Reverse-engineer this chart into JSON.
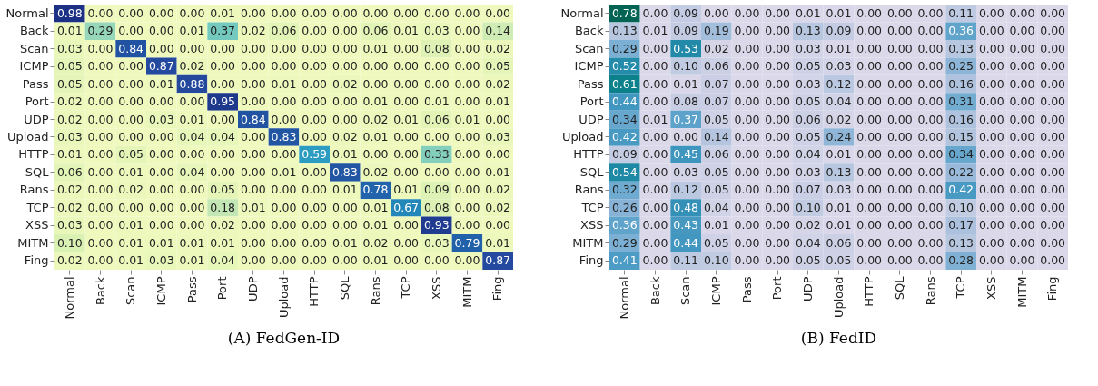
{
  "chart_data": [
    {
      "type": "heatmap",
      "title": "(A) FedGen-ID",
      "data_labels": true,
      "categories": [
        "Normal",
        "Back",
        "Scan",
        "ICMP",
        "Pass",
        "Port",
        "UDP",
        "Upload",
        "HTTP",
        "SQL",
        "Rans",
        "TCP",
        "XSS",
        "MITM",
        "Fing"
      ],
      "y_categories": [
        "Normal",
        "Back",
        "Scan",
        "ICMP",
        "Pass",
        "Port",
        "UDP",
        "Upload",
        "HTTP",
        "SQL",
        "Rans",
        "TCP",
        "XSS",
        "MITM",
        "Fing"
      ],
      "cells": [
        [
          0.98,
          0.0,
          0.0,
          0.0,
          0.0,
          0.01,
          0.0,
          0.0,
          0.0,
          0.0,
          0.0,
          0.0,
          0.0,
          0.0,
          0.0
        ],
        [
          0.01,
          0.29,
          0.0,
          0.0,
          0.01,
          0.37,
          0.02,
          0.06,
          0.0,
          0.0,
          0.06,
          0.01,
          0.03,
          0.0,
          0.14
        ],
        [
          0.03,
          0.0,
          0.84,
          0.0,
          0.0,
          0.0,
          0.0,
          0.0,
          0.0,
          0.0,
          0.01,
          0.0,
          0.08,
          0.0,
          0.02
        ],
        [
          0.05,
          0.0,
          0.0,
          0.87,
          0.02,
          0.0,
          0.0,
          0.0,
          0.0,
          0.0,
          0.0,
          0.0,
          0.0,
          0.0,
          0.05
        ],
        [
          0.05,
          0.0,
          0.0,
          0.01,
          0.88,
          0.0,
          0.0,
          0.01,
          0.0,
          0.02,
          0.0,
          0.0,
          0.0,
          0.0,
          0.02
        ],
        [
          0.02,
          0.0,
          0.0,
          0.0,
          0.0,
          0.95,
          0.0,
          0.0,
          0.0,
          0.0,
          0.01,
          0.0,
          0.01,
          0.0,
          0.01
        ],
        [
          0.02,
          0.0,
          0.0,
          0.03,
          0.01,
          0.0,
          0.84,
          0.0,
          0.0,
          0.0,
          0.02,
          0.01,
          0.06,
          0.01,
          0.0
        ],
        [
          0.03,
          0.0,
          0.0,
          0.0,
          0.04,
          0.04,
          0.0,
          0.83,
          0.0,
          0.02,
          0.01,
          0.0,
          0.0,
          0.0,
          0.03
        ],
        [
          0.01,
          0.0,
          0.05,
          0.0,
          0.0,
          0.0,
          0.0,
          0.0,
          0.59,
          0.01,
          0.0,
          0.0,
          0.33,
          0.0,
          0.0
        ],
        [
          0.06,
          0.0,
          0.01,
          0.0,
          0.04,
          0.0,
          0.0,
          0.01,
          0.0,
          0.83,
          0.02,
          0.0,
          0.0,
          0.0,
          0.01
        ],
        [
          0.02,
          0.0,
          0.02,
          0.0,
          0.0,
          0.05,
          0.0,
          0.0,
          0.0,
          0.01,
          0.78,
          0.01,
          0.09,
          0.0,
          0.02
        ],
        [
          0.02,
          0.0,
          0.0,
          0.0,
          0.0,
          0.18,
          0.01,
          0.0,
          0.0,
          0.0,
          0.01,
          0.67,
          0.08,
          0.0,
          0.02
        ],
        [
          0.03,
          0.0,
          0.01,
          0.0,
          0.0,
          0.02,
          0.0,
          0.0,
          0.0,
          0.0,
          0.01,
          0.0,
          0.93,
          0.0,
          0.0
        ],
        [
          0.1,
          0.0,
          0.01,
          0.01,
          0.01,
          0.01,
          0.0,
          0.0,
          0.0,
          0.01,
          0.02,
          0.0,
          0.03,
          0.79,
          0.01
        ],
        [
          0.02,
          0.0,
          0.01,
          0.03,
          0.01,
          0.04,
          0.0,
          0.0,
          0.0,
          0.0,
          0.01,
          0.0,
          0.0,
          0.0,
          0.87
        ]
      ],
      "cell_labels": [
        [
          "0.98",
          "0.00",
          "0.00",
          "0.00",
          "0.00",
          "0.01",
          "0.00",
          "0.00",
          "0.00",
          "0.00",
          "0.00",
          "0.00",
          "0.00",
          "0.00",
          "0.00"
        ],
        [
          "0.01",
          "0.29",
          "0.00",
          "0.00",
          "0.01",
          "0.37",
          "0.02",
          "0.06",
          "0.00",
          "0.00",
          "0.06",
          "0.01",
          "0.03",
          "0.00",
          "0.14"
        ],
        [
          "0.03",
          "0.00",
          "0.84",
          "0.00",
          "0.00",
          "0.00",
          "0.00",
          "0.00",
          "0.00",
          "0.00",
          "0.01",
          "0.00",
          "0.08",
          "0.00",
          "0.02"
        ],
        [
          "0.05",
          "0.00",
          "0.00",
          "0.87",
          "0.02",
          "0.00",
          "0.00",
          "0.00",
          "0.00",
          "0.00",
          "0.00",
          "0.00",
          "0.00",
          "0.00",
          "0.05"
        ],
        [
          "0.05",
          "0.00",
          "0.00",
          "0.01",
          "0.88",
          "0.00",
          "0.00",
          "0.01",
          "0.00",
          "0.02",
          "0.00",
          "0.00",
          "0.00",
          "0.00",
          "0.02"
        ],
        [
          "0.02",
          "0.00",
          "0.00",
          "0.00",
          "0.00",
          "0.95",
          "0.00",
          "0.00",
          "0.00",
          "0.00",
          "0.01",
          "0.00",
          "0.01",
          "0.00",
          "0.01"
        ],
        [
          "0.02",
          "0.00",
          "0.00",
          "0.03",
          "0.01",
          "0.00",
          "0.84",
          "0.00",
          "0.00",
          "0.00",
          "0.02",
          "0.01",
          "0.06",
          "0.01",
          "0.00"
        ],
        [
          "0.03",
          "0.00",
          "0.00",
          "0.00",
          "0.04",
          "0.04",
          "0.00",
          "0.83",
          "0.00",
          "0.02",
          "0.01",
          "0.00",
          "0.00",
          "0.00",
          "0.03"
        ],
        [
          "0.01",
          "0.00",
          "0.05",
          "0.00",
          "0.00",
          "0.00",
          "0.00",
          "0.00",
          "0.59",
          "0.01",
          "0.00",
          "0.00",
          "0.33",
          "0.00",
          "0.00"
        ],
        [
          "0.06",
          "0.00",
          "0.01",
          "0.00",
          "0.04",
          "0.00",
          "0.00",
          "0.01",
          "0.00",
          "0.83",
          "0.02",
          "0.00",
          "0.00",
          "0.00",
          "0.01"
        ],
        [
          "0.02",
          "0.00",
          "0.02",
          "0.00",
          "0.00",
          "0.05",
          "0.00",
          "0.00",
          "0.00",
          "0.01",
          "0.78",
          "0.01",
          "0.09",
          "0.00",
          "0.02"
        ],
        [
          "0.02",
          "0.00",
          "0.00",
          "0.00",
          "0.00",
          "0.18",
          "0.01",
          "0.00",
          "0.00",
          "0.00",
          "0.01",
          "0.67",
          "0.08",
          "0.00",
          "0.02"
        ],
        [
          "0.03",
          "0.00",
          "0.01",
          "0.00",
          "0.00",
          "0.02",
          "0.00",
          "0.00",
          "0.00",
          "0.00",
          "0.01",
          "0.00",
          "0.93",
          "0.00",
          "0.00"
        ],
        [
          "0.10",
          "0.00",
          "0.01",
          "0.01",
          "0.01",
          "0.01",
          "0.00",
          "0.00",
          "0.00",
          "0.01",
          "0.02",
          "0.00",
          "0.03",
          "0.79",
          "0.01"
        ],
        [
          "0.02",
          "0.00",
          "0.01",
          "0.03",
          "0.01",
          "0.04",
          "0.00",
          "0.00",
          "0.00",
          "0.00",
          "0.01",
          "0.00",
          "0.00",
          "0.00",
          "0.87"
        ]
      ]
    },
    {
      "type": "heatmap",
      "title": "(B) FedID",
      "data_labels": true,
      "categories": [
        "Normal",
        "Back",
        "Scan",
        "ICMP",
        "Pass",
        "Port",
        "UDP",
        "Upload",
        "HTTP",
        "SQL",
        "Rans",
        "TCP",
        "XSS",
        "MITM",
        "Fing"
      ],
      "y_categories": [
        "Normal",
        "Back",
        "Scan",
        "ICMP",
        "Pass",
        "Port",
        "UDP",
        "Upload",
        "HTTP",
        "SQL",
        "Rans",
        "TCP",
        "XSS",
        "MITM",
        "Fing"
      ],
      "cells": [
        [
          0.78,
          0.0,
          0.09,
          0.0,
          0.0,
          0.0,
          0.01,
          0.01,
          0.0,
          0.0,
          0.0,
          0.11,
          0.0,
          0.0,
          0.0
        ],
        [
          0.13,
          0.01,
          0.09,
          0.19,
          0.0,
          0.0,
          0.13,
          0.09,
          0.0,
          0.0,
          0.0,
          0.36,
          0.0,
          0.0,
          0.0
        ],
        [
          0.29,
          0.0,
          0.53,
          0.02,
          0.0,
          0.0,
          0.03,
          0.01,
          0.0,
          0.0,
          0.0,
          0.13,
          0.0,
          0.0,
          0.0
        ],
        [
          0.52,
          0.0,
          0.1,
          0.06,
          0.0,
          0.0,
          0.05,
          0.03,
          0.0,
          0.0,
          0.0,
          0.25,
          0.0,
          0.0,
          0.0
        ],
        [
          0.61,
          0.0,
          0.01,
          0.07,
          0.0,
          0.0,
          0.03,
          0.12,
          0.0,
          0.0,
          0.0,
          0.16,
          0.0,
          0.0,
          0.0
        ],
        [
          0.44,
          0.0,
          0.08,
          0.07,
          0.0,
          0.0,
          0.05,
          0.04,
          0.0,
          0.0,
          0.0,
          0.31,
          0.0,
          0.0,
          0.0
        ],
        [
          0.34,
          0.01,
          0.37,
          0.05,
          0.0,
          0.0,
          0.06,
          0.02,
          0.0,
          0.0,
          0.0,
          0.16,
          0.0,
          0.0,
          0.0
        ],
        [
          0.42,
          0.0,
          0.0,
          0.14,
          0.0,
          0.0,
          0.05,
          0.24,
          0.0,
          0.0,
          0.0,
          0.15,
          0.0,
          0.0,
          0.0
        ],
        [
          0.09,
          0.0,
          0.45,
          0.06,
          0.0,
          0.0,
          0.04,
          0.01,
          0.0,
          0.0,
          0.0,
          0.34,
          0.0,
          0.0,
          0.0
        ],
        [
          0.54,
          0.0,
          0.03,
          0.05,
          0.0,
          0.0,
          0.03,
          0.13,
          0.0,
          0.0,
          0.0,
          0.22,
          0.0,
          0.0,
          0.0
        ],
        [
          0.32,
          0.0,
          0.12,
          0.05,
          0.0,
          0.0,
          0.07,
          0.03,
          0.0,
          0.0,
          0.0,
          0.42,
          0.0,
          0.0,
          0.0
        ],
        [
          0.26,
          0.0,
          0.48,
          0.04,
          0.0,
          0.0,
          0.1,
          0.01,
          0.0,
          0.0,
          0.0,
          0.1,
          0.0,
          0.0,
          0.0
        ],
        [
          0.36,
          0.0,
          0.43,
          0.01,
          0.0,
          0.0,
          0.02,
          0.01,
          0.0,
          0.0,
          0.0,
          0.17,
          0.0,
          0.0,
          0.0
        ],
        [
          0.29,
          0.0,
          0.44,
          0.05,
          0.0,
          0.0,
          0.04,
          0.06,
          0.0,
          0.0,
          0.0,
          0.13,
          0.0,
          0.0,
          0.0
        ],
        [
          0.41,
          0.0,
          0.11,
          0.1,
          0.0,
          0.0,
          0.05,
          0.05,
          0.0,
          0.0,
          0.0,
          0.28,
          0.0,
          0.0,
          0.0
        ]
      ],
      "cell_labels": [
        [
          "0.78",
          "0.00",
          "0.09",
          "0.00",
          "0.00",
          "0.00",
          "0.01",
          "0.01",
          "0.00",
          "0.00",
          "0.00",
          "0.11",
          "0.00",
          "0.00",
          "0.00"
        ],
        [
          "0.13",
          "0.01",
          "0.09",
          "0.19",
          "0.00",
          "0.00",
          "0.13",
          "0.09",
          "0.00",
          "0.00",
          "0.00",
          "0.36",
          "0.00",
          "0.00",
          "0.00"
        ],
        [
          "0.29",
          "0.00",
          "0.53",
          "0.02",
          "0.00",
          "0.00",
          "0.03",
          "0.01",
          "0.00",
          "0.00",
          "0.00",
          "0.13",
          "0.00",
          "0.00",
          "0.00"
        ],
        [
          "0.52",
          "0.00",
          "0.10",
          "0.06",
          "0.00",
          "0.00",
          "0.05",
          "0.03",
          "0.00",
          "0.00",
          "0.00",
          "0.25",
          "0.00",
          "0.00",
          "0.00"
        ],
        [
          "0.61",
          "0.00",
          "0.01",
          "0.07",
          "0.00",
          "0.00",
          "0.03",
          "0.12",
          "0.00",
          "0.00",
          "0.00",
          "0.16",
          "0.00",
          "0.00",
          "0.00"
        ],
        [
          "0.44",
          "0.00",
          "0.08",
          "0.07",
          "0.00",
          "0.00",
          "0.05",
          "0.04",
          "0.00",
          "0.00",
          "0.00",
          "0.31",
          "0.00",
          "0.00",
          "0.00"
        ],
        [
          "0.34",
          "0.01",
          "0.37",
          "0.05",
          "0.00",
          "0.00",
          "0.06",
          "0.02",
          "0.00",
          "0.00",
          "0.00",
          "0.16",
          "0.00",
          "0.00",
          "0.00"
        ],
        [
          "0.42",
          "0.00",
          "0.00",
          "0.14",
          "0.00",
          "0.00",
          "0.05",
          "0.24",
          "0.00",
          "0.00",
          "0.00",
          "0.15",
          "0.00",
          "0.00",
          "0.00"
        ],
        [
          "0.09",
          "0.00",
          "0.45",
          "0.06",
          "0.00",
          "0.00",
          "0.04",
          "0.01",
          "0.00",
          "0.00",
          "0.00",
          "0.34",
          "0.00",
          "0.00",
          "0.00"
        ],
        [
          "0.54",
          "0.00",
          "0.03",
          "0.05",
          "0.00",
          "0.00",
          "0.03",
          "0.13",
          "0.00",
          "0.00",
          "0.00",
          "0.22",
          "0.00",
          "0.00",
          "0.00"
        ],
        [
          "0.32",
          "0.00",
          "0.12",
          "0.05",
          "0.00",
          "0.00",
          "0.07",
          "0.03",
          "0.00",
          "0.00",
          "0.00",
          "0.42",
          "0.00",
          "0.00",
          "0.00"
        ],
        [
          "0.26",
          "0.00",
          "0.48",
          "0.04",
          "0.00",
          "0.00",
          "0.10",
          "0.01",
          "0.00",
          "0.00",
          "0.00",
          "0.10",
          "0.00",
          "0.00",
          "0.00"
        ],
        [
          "0.36",
          "0.00",
          "0.43",
          "0.01",
          "0.00",
          "0.00",
          "0.02",
          "0.01",
          "0.00",
          "0.00",
          "0.00",
          "0.17",
          "0.00",
          "0.00",
          "0.00"
        ],
        [
          "0.29",
          "0.00",
          "0.44",
          "0.05",
          "0.00",
          "0.00",
          "0.04",
          "0.06",
          "0.00",
          "0.00",
          "0.00",
          "0.13",
          "0.00",
          "0.00",
          "0.00"
        ],
        [
          "0.41",
          "0.00",
          "0.11",
          "0.10",
          "0.00",
          "0.00",
          "0.05",
          "0.05",
          "0.00",
          "0.00",
          "0.00",
          "0.28",
          "0.00",
          "0.00",
          "0.00"
        ]
      ]
    }
  ]
}
